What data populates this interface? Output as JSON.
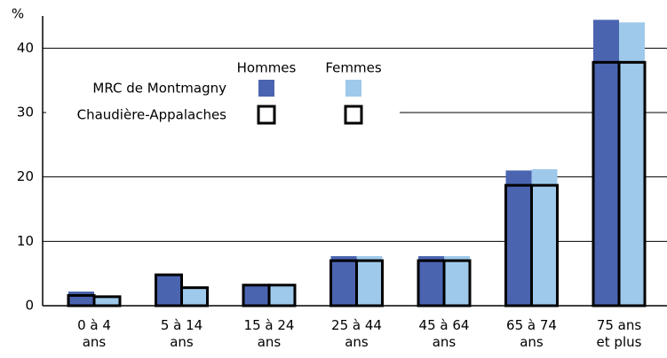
{
  "chart_data": {
    "type": "grouped-bar-overlay",
    "ylabel": "%",
    "categories": [
      "0 à 4\nans",
      "5 à 14\nans",
      "15 à 24\nans",
      "25 à 44\nans",
      "45 à 64\nans",
      "65 à 74\nans",
      "75 ans\net plus"
    ],
    "sexes": [
      {
        "name": "Hommes",
        "color": "#4a64b0"
      },
      {
        "name": "Femmes",
        "color": "#9ec9ea"
      }
    ],
    "series": [
      {
        "name": "MRC de Montmagny",
        "style": "filled",
        "values": [
          [
            2.2,
            4.8,
            3.2,
            7.7,
            7.7,
            21.0,
            44.4
          ],
          [
            1.5,
            2.8,
            3.2,
            7.7,
            7.7,
            21.2,
            44.0
          ]
        ]
      },
      {
        "name": "Chaudière-Appalaches",
        "style": "outline",
        "color": "#000000",
        "values": [
          [
            1.6,
            4.8,
            3.2,
            7.0,
            7.0,
            18.7,
            37.8
          ],
          [
            1.4,
            2.8,
            3.2,
            7.0,
            7.0,
            18.7,
            37.8
          ]
        ]
      }
    ],
    "ylim": [
      0,
      45
    ],
    "yticks": [
      0,
      10,
      20,
      30,
      40
    ],
    "grid": true
  }
}
